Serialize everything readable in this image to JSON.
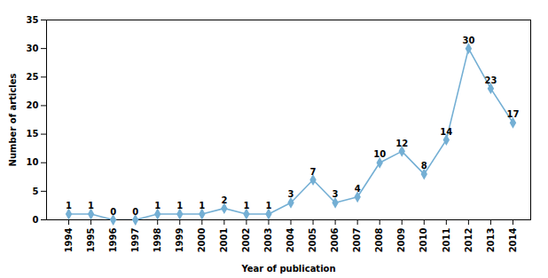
{
  "chart_data": {
    "type": "line",
    "x": [
      1994,
      1995,
      1996,
      1997,
      1998,
      1999,
      2000,
      2001,
      2002,
      2003,
      2004,
      2005,
      2006,
      2007,
      2008,
      2009,
      2010,
      2011,
      2012,
      2013,
      2014
    ],
    "values": [
      1,
      1,
      0,
      0,
      1,
      1,
      1,
      2,
      1,
      1,
      3,
      7,
      3,
      4,
      10,
      12,
      8,
      14,
      30,
      23,
      17
    ],
    "color": "#74afd4",
    "marker": "diamond",
    "xlabel": "Year of publication",
    "ylabel": "Number of articles",
    "xlim": [
      1993,
      2014.8
    ],
    "xticks": [
      1994,
      1995,
      1996,
      1997,
      1998,
      1999,
      2000,
      2001,
      2002,
      2003,
      2004,
      2005,
      2006,
      2007,
      2008,
      2009,
      2010,
      2011,
      2012,
      2013,
      2014
    ],
    "ylim": [
      0,
      35
    ],
    "yticks": [
      0,
      5,
      10,
      15,
      20,
      25,
      30,
      35
    ],
    "data_labels": true,
    "grid": false
  }
}
